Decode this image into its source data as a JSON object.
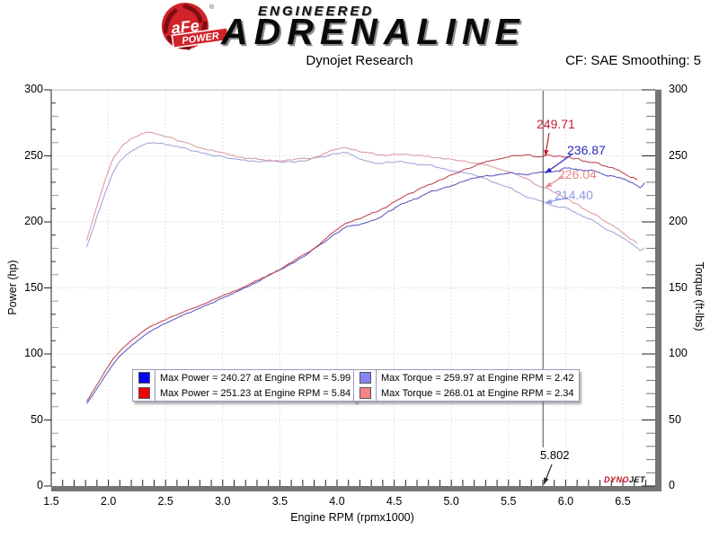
{
  "header": {
    "brand": {
      "circle_text": "aFe",
      "banner_text": "POWER",
      "reg_mark": "®",
      "word_top": "ENGINEERED",
      "word_main": "ADRENALINE"
    },
    "title": "Dynojet Research",
    "correction": "CF: SAE Smoothing: 5"
  },
  "chart_data": {
    "type": "line",
    "title": "Dynojet Research",
    "xlabel": "Engine RPM (rpmx1000)",
    "ylabel_left": "Power (hp)",
    "ylabel_right": "Torque (ft-lbs)",
    "xlim": [
      1.5,
      6.78
    ],
    "ylim": [
      0,
      300
    ],
    "x_ticks": [
      1.5,
      2.0,
      2.5,
      3.0,
      3.5,
      4.0,
      4.5,
      5.0,
      5.5,
      6.0,
      6.5
    ],
    "y_ticks": [
      0,
      50,
      100,
      150,
      200,
      250,
      300
    ],
    "grid": true,
    "legend_position": "bottom-center",
    "cursor": {
      "rpm": 5.802,
      "label": "5.802",
      "readouts": [
        {
          "series": "power_2",
          "value": 249.71,
          "text": "249.71",
          "color": "#c51f30"
        },
        {
          "series": "power_1",
          "value": 236.87,
          "text": "236.87",
          "color": "#2a2ac2"
        },
        {
          "series": "torque_2",
          "value": 226.04,
          "text": "226.04",
          "color": "#e8858d"
        },
        {
          "series": "torque_1",
          "value": 214.4,
          "text": "214.40",
          "color": "#8f97e6"
        }
      ]
    },
    "series": [
      {
        "id": "torque_1",
        "axis": "right",
        "color": "#a6a6da",
        "max": {
          "value": 259.97,
          "rpm": 2.42
        },
        "points": [
          [
            1.81,
            181
          ],
          [
            1.86,
            193
          ],
          [
            1.92,
            209
          ],
          [
            1.98,
            224
          ],
          [
            2.04,
            237
          ],
          [
            2.1,
            246
          ],
          [
            2.16,
            251.5
          ],
          [
            2.22,
            255
          ],
          [
            2.28,
            257.5
          ],
          [
            2.34,
            259
          ],
          [
            2.42,
            260
          ],
          [
            2.52,
            258.5
          ],
          [
            2.62,
            256.5
          ],
          [
            2.72,
            254.5
          ],
          [
            2.82,
            252.5
          ],
          [
            2.92,
            250.5
          ],
          [
            3.02,
            249
          ],
          [
            3.12,
            247.5
          ],
          [
            3.22,
            246.5
          ],
          [
            3.32,
            246
          ],
          [
            3.42,
            245.5
          ],
          [
            3.52,
            245.5
          ],
          [
            3.62,
            246
          ],
          [
            3.72,
            246.5
          ],
          [
            3.82,
            248
          ],
          [
            3.92,
            250
          ],
          [
            4.02,
            252
          ],
          [
            4.08,
            252.3
          ],
          [
            4.16,
            249
          ],
          [
            4.26,
            246
          ],
          [
            4.36,
            244.5
          ],
          [
            4.46,
            245
          ],
          [
            4.56,
            245.5
          ],
          [
            4.66,
            244.5
          ],
          [
            4.76,
            243
          ],
          [
            4.86,
            241.5
          ],
          [
            4.96,
            240
          ],
          [
            5.06,
            238.5
          ],
          [
            5.16,
            236.5
          ],
          [
            5.26,
            234
          ],
          [
            5.36,
            231
          ],
          [
            5.46,
            227.5
          ],
          [
            5.56,
            223.5
          ],
          [
            5.66,
            219.5
          ],
          [
            5.76,
            216
          ],
          [
            5.86,
            213.2
          ],
          [
            5.99,
            210.7
          ],
          [
            6.06,
            208
          ],
          [
            6.16,
            203.5
          ],
          [
            6.26,
            199.5
          ],
          [
            6.36,
            195
          ],
          [
            6.46,
            190
          ],
          [
            6.56,
            185
          ],
          [
            6.62,
            181.5
          ],
          [
            6.66,
            178.5
          ],
          [
            6.7,
            181
          ]
        ]
      },
      {
        "id": "torque_2",
        "axis": "right",
        "color": "#db9ea7",
        "max": {
          "value": 268.01,
          "rpm": 2.34
        },
        "points": [
          [
            1.81,
            186
          ],
          [
            1.86,
            200
          ],
          [
            1.92,
            218
          ],
          [
            1.98,
            234
          ],
          [
            2.04,
            247
          ],
          [
            2.1,
            255
          ],
          [
            2.16,
            260.5
          ],
          [
            2.22,
            264
          ],
          [
            2.28,
            266.5
          ],
          [
            2.34,
            268
          ],
          [
            2.42,
            266.8
          ],
          [
            2.52,
            264
          ],
          [
            2.62,
            261
          ],
          [
            2.72,
            258.5
          ],
          [
            2.82,
            256
          ],
          [
            2.92,
            253.5
          ],
          [
            3.02,
            251.5
          ],
          [
            3.12,
            249.5
          ],
          [
            3.22,
            248
          ],
          [
            3.32,
            247
          ],
          [
            3.42,
            246.5
          ],
          [
            3.52,
            246.5
          ],
          [
            3.62,
            247
          ],
          [
            3.72,
            247.5
          ],
          [
            3.82,
            249
          ],
          [
            3.92,
            252.5
          ],
          [
            4.02,
            255.5
          ],
          [
            4.08,
            256.3
          ],
          [
            4.16,
            254.5
          ],
          [
            4.26,
            252.5
          ],
          [
            4.36,
            251
          ],
          [
            4.46,
            250.5
          ],
          [
            4.56,
            251.3
          ],
          [
            4.66,
            250.5
          ],
          [
            4.76,
            249
          ],
          [
            4.86,
            248.5
          ],
          [
            4.96,
            248
          ],
          [
            5.06,
            247
          ],
          [
            5.16,
            245.5
          ],
          [
            5.26,
            244
          ],
          [
            5.36,
            242
          ],
          [
            5.46,
            239.5
          ],
          [
            5.56,
            236.5
          ],
          [
            5.66,
            232.5
          ],
          [
            5.76,
            227.5
          ],
          [
            5.84,
            225.9
          ],
          [
            5.96,
            220
          ],
          [
            6.06,
            215
          ],
          [
            6.16,
            210
          ],
          [
            6.26,
            205
          ],
          [
            6.36,
            199.5
          ],
          [
            6.46,
            194
          ],
          [
            6.56,
            188.5
          ],
          [
            6.62,
            185
          ],
          [
            6.64,
            182.5
          ]
        ]
      },
      {
        "id": "power_1",
        "axis": "left",
        "color": "#5f5fc6",
        "max": {
          "value": 240.27,
          "rpm": 5.99
        },
        "derived_from": "torque_1"
      },
      {
        "id": "power_2",
        "axis": "left",
        "color": "#c24b59",
        "max": {
          "value": 251.23,
          "rpm": 5.84
        },
        "derived_from": "torque_2"
      }
    ]
  },
  "legend": {
    "boxes": [
      {
        "rows": [
          {
            "swatch": "#0202f2",
            "text": "Max Power = 240.27 at Engine RPM = 5.99"
          },
          {
            "swatch": "#f20202",
            "text": "Max Power = 251.23 at Engine RPM = 5.84"
          }
        ]
      },
      {
        "rows": [
          {
            "swatch": "#8585f7",
            "text": "Max Torque = 259.97 at Engine RPM = 2.42"
          },
          {
            "swatch": "#f78585",
            "text": "Max Torque = 268.01 at Engine RPM = 2.34"
          }
        ]
      }
    ]
  },
  "watermark": {
    "part1": "DYNO",
    "part2": "JET"
  }
}
